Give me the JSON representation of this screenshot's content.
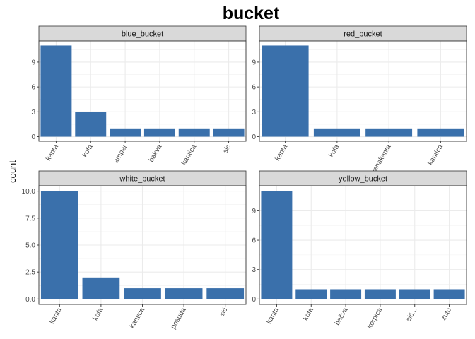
{
  "chart_data": {
    "type": "bar",
    "title": "bucket",
    "ylabel": "count",
    "xlabel": "",
    "bar_color": "#3a70ab",
    "strip_fill": "#d9d9d9",
    "grid": true,
    "facets": [
      {
        "name": "blue_bucket",
        "categories": [
          "kanta",
          "kofa",
          "amper",
          "bakva",
          "kantica",
          "sic"
        ],
        "values": [
          11,
          3,
          1,
          1,
          1,
          1
        ],
        "ylim": [
          -0.55,
          11.55
        ],
        "yticks": [
          0,
          3,
          6,
          9
        ],
        "ytick_labels": [
          "0",
          "3",
          "6",
          "9"
        ]
      },
      {
        "name": "red_bucket",
        "categories": [
          "kanta",
          "kofa",
          "crvenakanta",
          "kantica"
        ],
        "values": [
          11,
          1,
          1,
          1
        ],
        "ylim": [
          -0.55,
          11.55
        ],
        "yticks": [
          0,
          3,
          6,
          9
        ],
        "ytick_labels": [
          "0",
          "3",
          "6",
          "9"
        ]
      },
      {
        "name": "white_bucket",
        "categories": [
          "kanta",
          "kofa",
          "kantica",
          "posuda",
          "sič"
        ],
        "values": [
          10,
          2,
          1,
          1,
          1
        ],
        "ylim": [
          -0.5,
          10.5
        ],
        "yticks": [
          0,
          2.5,
          5,
          7.5,
          10
        ],
        "ytick_labels": [
          "0.0",
          "2.5",
          "5.0",
          "7.5",
          "10.0"
        ]
      },
      {
        "name": "yellow_bucket",
        "categories": [
          "kanta",
          "kofa",
          "bačva",
          "korpica",
          "sič...",
          "zuto"
        ],
        "values": [
          11,
          1,
          1,
          1,
          1,
          1
        ],
        "ylim": [
          -0.55,
          11.55
        ],
        "yticks": [
          0,
          3,
          6,
          9
        ],
        "ytick_labels": [
          "0",
          "3",
          "6",
          "9"
        ]
      }
    ]
  }
}
